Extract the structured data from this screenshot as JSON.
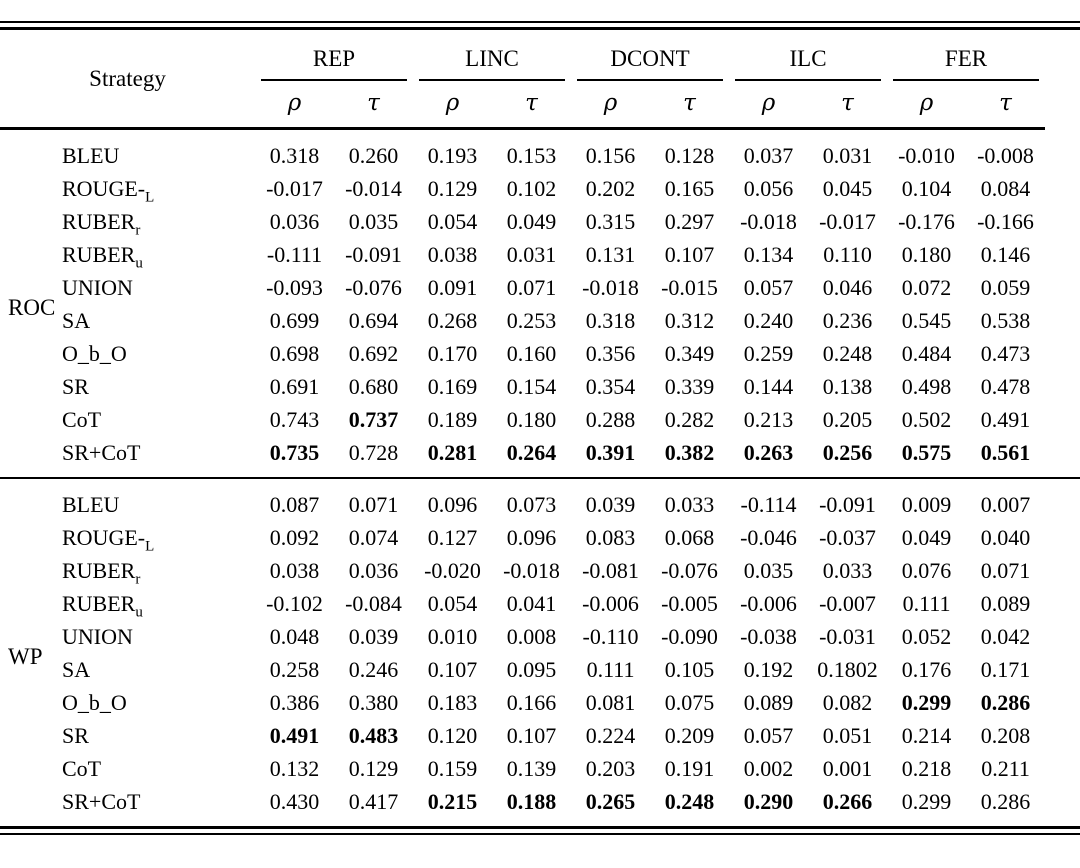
{
  "table": {
    "strategy_header": "Strategy",
    "col_groups": [
      "REP",
      "LINC",
      "DCONT",
      "ILC",
      "FER"
    ],
    "subheaders": [
      "ρ",
      "τ"
    ],
    "groups": [
      {
        "name": "ROC",
        "rows": [
          {
            "label": "BLEU",
            "sub": "",
            "values": [
              "0.318",
              "0.260",
              "0.193",
              "0.153",
              "0.156",
              "0.128",
              "0.037",
              "0.031",
              "-0.010",
              "-0.008"
            ],
            "bold": [
              false,
              false,
              false,
              false,
              false,
              false,
              false,
              false,
              false,
              false
            ]
          },
          {
            "label": "ROUGE-",
            "sub": "L",
            "values": [
              "-0.017",
              "-0.014",
              "0.129",
              "0.102",
              "0.202",
              "0.165",
              "0.056",
              "0.045",
              "0.104",
              "0.084"
            ],
            "bold": [
              false,
              false,
              false,
              false,
              false,
              false,
              false,
              false,
              false,
              false
            ]
          },
          {
            "label": "RUBER",
            "sub": "r",
            "values": [
              "0.036",
              "0.035",
              "0.054",
              "0.049",
              "0.315",
              "0.297",
              "-0.018",
              "-0.017",
              "-0.176",
              "-0.166"
            ],
            "bold": [
              false,
              false,
              false,
              false,
              false,
              false,
              false,
              false,
              false,
              false
            ]
          },
          {
            "label": "RUBER",
            "sub": "u",
            "values": [
              "-0.111",
              "-0.091",
              "0.038",
              "0.031",
              "0.131",
              "0.107",
              "0.134",
              "0.110",
              "0.180",
              "0.146"
            ],
            "bold": [
              false,
              false,
              false,
              false,
              false,
              false,
              false,
              false,
              false,
              false
            ]
          },
          {
            "label": "UNION",
            "sub": "",
            "values": [
              "-0.093",
              "-0.076",
              "0.091",
              "0.071",
              "-0.018",
              "-0.015",
              "0.057",
              "0.046",
              "0.072",
              "0.059"
            ],
            "bold": [
              false,
              false,
              false,
              false,
              false,
              false,
              false,
              false,
              false,
              false
            ]
          },
          {
            "label": "SA",
            "sub": "",
            "values": [
              "0.699",
              "0.694",
              "0.268",
              "0.253",
              "0.318",
              "0.312",
              "0.240",
              "0.236",
              "0.545",
              "0.538"
            ],
            "bold": [
              false,
              false,
              false,
              false,
              false,
              false,
              false,
              false,
              false,
              false
            ]
          },
          {
            "label": "O_b_O",
            "sub": "",
            "values": [
              "0.698",
              "0.692",
              "0.170",
              "0.160",
              "0.356",
              "0.349",
              "0.259",
              "0.248",
              "0.484",
              "0.473"
            ],
            "bold": [
              false,
              false,
              false,
              false,
              false,
              false,
              false,
              false,
              false,
              false
            ]
          },
          {
            "label": "SR",
            "sub": "",
            "values": [
              "0.691",
              "0.680",
              "0.169",
              "0.154",
              "0.354",
              "0.339",
              "0.144",
              "0.138",
              "0.498",
              "0.478"
            ],
            "bold": [
              false,
              false,
              false,
              false,
              false,
              false,
              false,
              false,
              false,
              false
            ]
          },
          {
            "label": "CoT",
            "sub": "",
            "values": [
              "0.743",
              "0.737",
              "0.189",
              "0.180",
              "0.288",
              "0.282",
              "0.213",
              "0.205",
              "0.502",
              "0.491"
            ],
            "bold": [
              false,
              true,
              false,
              false,
              false,
              false,
              false,
              false,
              false,
              false
            ]
          },
          {
            "label": "SR+CoT",
            "sub": "",
            "values": [
              "0.735",
              "0.728",
              "0.281",
              "0.264",
              "0.391",
              "0.382",
              "0.263",
              "0.256",
              "0.575",
              "0.561"
            ],
            "bold": [
              true,
              false,
              true,
              true,
              true,
              true,
              true,
              true,
              true,
              true
            ]
          }
        ]
      },
      {
        "name": "WP",
        "rows": [
          {
            "label": "BLEU",
            "sub": "",
            "values": [
              "0.087",
              "0.071",
              "0.096",
              "0.073",
              "0.039",
              "0.033",
              "-0.114",
              "-0.091",
              "0.009",
              "0.007"
            ],
            "bold": [
              false,
              false,
              false,
              false,
              false,
              false,
              false,
              false,
              false,
              false
            ]
          },
          {
            "label": "ROUGE-",
            "sub": "L",
            "values": [
              "0.092",
              "0.074",
              "0.127",
              "0.096",
              "0.083",
              "0.068",
              "-0.046",
              "-0.037",
              "0.049",
              "0.040"
            ],
            "bold": [
              false,
              false,
              false,
              false,
              false,
              false,
              false,
              false,
              false,
              false
            ]
          },
          {
            "label": "RUBER",
            "sub": "r",
            "values": [
              "0.038",
              "0.036",
              "-0.020",
              "-0.018",
              "-0.081",
              "-0.076",
              "0.035",
              "0.033",
              "0.076",
              "0.071"
            ],
            "bold": [
              false,
              false,
              false,
              false,
              false,
              false,
              false,
              false,
              false,
              false
            ]
          },
          {
            "label": "RUBER",
            "sub": "u",
            "values": [
              "-0.102",
              "-0.084",
              "0.054",
              "0.041",
              "-0.006",
              "-0.005",
              "-0.006",
              "-0.007",
              "0.111",
              "0.089"
            ],
            "bold": [
              false,
              false,
              false,
              false,
              false,
              false,
              false,
              false,
              false,
              false
            ]
          },
          {
            "label": "UNION",
            "sub": "",
            "values": [
              "0.048",
              "0.039",
              "0.010",
              "0.008",
              "-0.110",
              "-0.090",
              "-0.038",
              "-0.031",
              "0.052",
              "0.042"
            ],
            "bold": [
              false,
              false,
              false,
              false,
              false,
              false,
              false,
              false,
              false,
              false
            ]
          },
          {
            "label": "SA",
            "sub": "",
            "values": [
              "0.258",
              "0.246",
              "0.107",
              "0.095",
              "0.111",
              "0.105",
              "0.192",
              "0.1802",
              "0.176",
              "0.171"
            ],
            "bold": [
              false,
              false,
              false,
              false,
              false,
              false,
              false,
              false,
              false,
              false
            ]
          },
          {
            "label": "O_b_O",
            "sub": "",
            "values": [
              "0.386",
              "0.380",
              "0.183",
              "0.166",
              "0.081",
              "0.075",
              "0.089",
              "0.082",
              "0.299",
              "0.286"
            ],
            "bold": [
              false,
              false,
              false,
              false,
              false,
              false,
              false,
              false,
              true,
              true
            ]
          },
          {
            "label": "SR",
            "sub": "",
            "values": [
              "0.491",
              "0.483",
              "0.120",
              "0.107",
              "0.224",
              "0.209",
              "0.057",
              "0.051",
              "0.214",
              "0.208"
            ],
            "bold": [
              true,
              true,
              false,
              false,
              false,
              false,
              false,
              false,
              false,
              false
            ]
          },
          {
            "label": "CoT",
            "sub": "",
            "values": [
              "0.132",
              "0.129",
              "0.159",
              "0.139",
              "0.203",
              "0.191",
              "0.002",
              "0.001",
              "0.218",
              "0.211"
            ],
            "bold": [
              false,
              false,
              false,
              false,
              false,
              false,
              false,
              false,
              false,
              false
            ]
          },
          {
            "label": "SR+CoT",
            "sub": "",
            "values": [
              "0.430",
              "0.417",
              "0.215",
              "0.188",
              "0.265",
              "0.248",
              "0.290",
              "0.266",
              "0.299",
              "0.286"
            ],
            "bold": [
              false,
              false,
              true,
              true,
              true,
              true,
              true,
              true,
              false,
              false
            ]
          }
        ]
      }
    ]
  }
}
